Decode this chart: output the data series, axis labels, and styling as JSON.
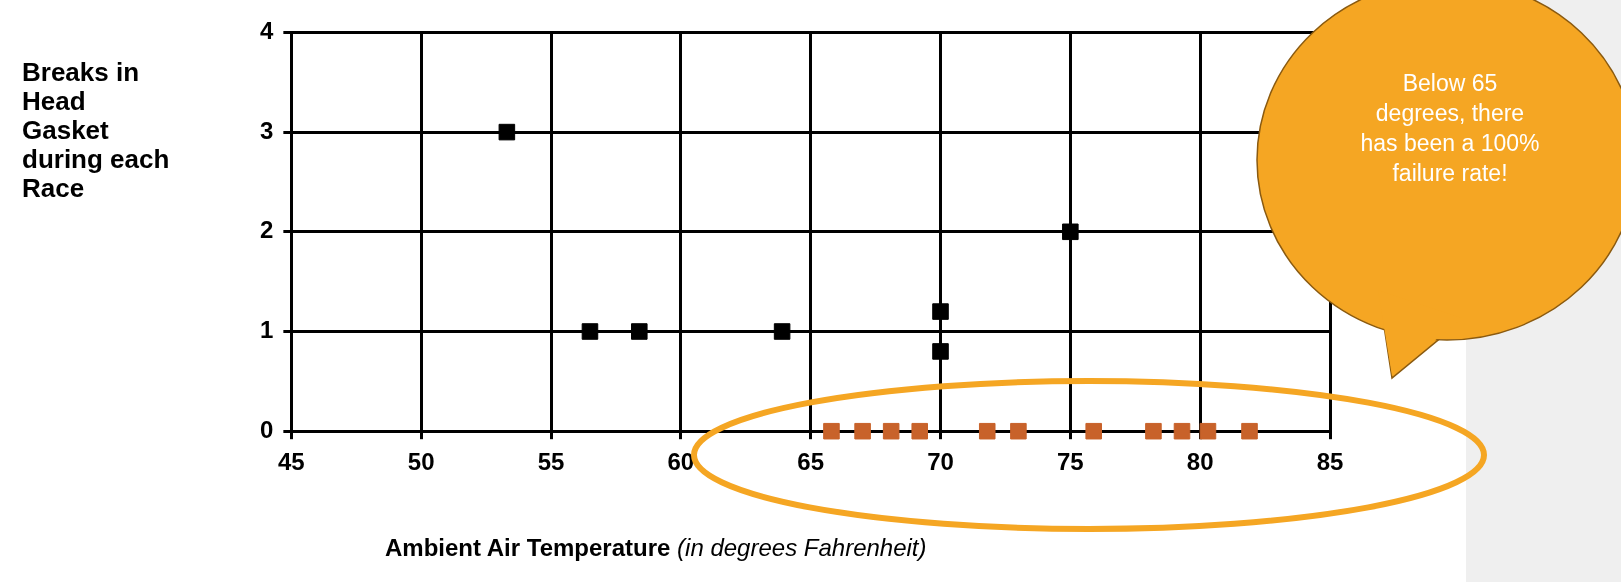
{
  "chart_data": {
    "type": "scatter",
    "xlabel": "Ambient Air Temperature (in degrees Fahrenheit)",
    "ylabel": "Breaks in Head Gasket during each Race",
    "xlim": [
      45,
      85
    ],
    "xticks": [
      45,
      50,
      55,
      60,
      65,
      70,
      75,
      80,
      85
    ],
    "ylim": [
      0,
      4
    ],
    "yticks": [
      0,
      1,
      2,
      3,
      4
    ],
    "grid": true,
    "legend": false,
    "marker": "square",
    "series": [
      {
        "color": "#000000",
        "x": [
          53.3,
          56.5,
          58.4,
          63.9,
          70,
          70,
          75
        ],
        "values": [
          3,
          1,
          1,
          1,
          1.2,
          0.8,
          2
        ]
      },
      {
        "color": "#c8622a",
        "x": [
          65.8,
          67,
          68.1,
          69.2,
          71.8,
          73,
          75.9,
          78.2,
          79.3,
          80.3,
          81.9
        ],
        "values": [
          0,
          0,
          0,
          0,
          0,
          0,
          0,
          0,
          0,
          0,
          0
        ]
      }
    ],
    "annotations": [
      "Below 65 degrees, there has been a 100% failure rate!"
    ]
  }
}
